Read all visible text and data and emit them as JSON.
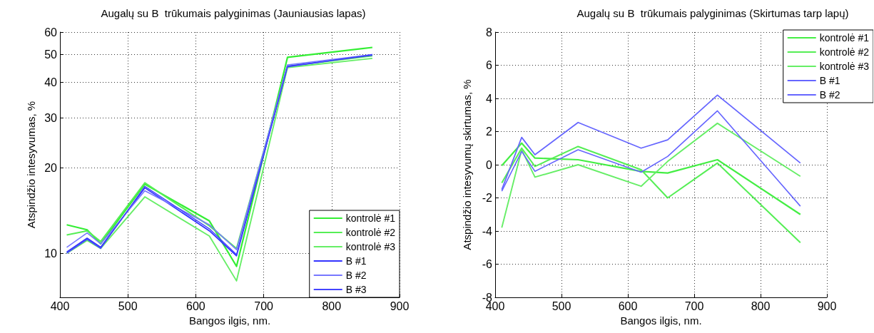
{
  "chart_data": [
    {
      "type": "line",
      "title": "Augalų su B  trūkumais palyginimas (Jauniausias lapas)",
      "xlabel": "Bangos ilgis, nm.",
      "ylabel": "Atspindžio intesyvumas, %",
      "x": [
        410,
        440,
        460,
        525,
        620,
        660,
        735,
        860
      ],
      "xlim": [
        400,
        900
      ],
      "xticks": [
        400,
        500,
        600,
        700,
        800,
        900
      ],
      "ylim": [
        7,
        60
      ],
      "yticks": [
        10,
        20,
        30,
        40,
        50,
        60
      ],
      "log": "y",
      "grid": true,
      "legend": "bottom right",
      "marker": "none",
      "line_style": "solid",
      "series": [
        {
          "name": "kontrolė #1",
          "color": "#33ee33",
          "values": [
            12.6,
            12.1,
            10.8,
            17.5,
            13.0,
            9.0,
            48.9,
            53.0
          ]
        },
        {
          "name": "kontrolė #2",
          "color": "#55ee55",
          "values": [
            11.6,
            12.0,
            11.0,
            17.7,
            12.5,
            10.4,
            45.5,
            49.5
          ]
        },
        {
          "name": "kontrolė #3",
          "color": "#66ee66",
          "values": [
            10.0,
            11.1,
            10.4,
            15.8,
            11.5,
            8.0,
            45.0,
            48.5
          ]
        },
        {
          "name": "B #1",
          "color": "#3333ff",
          "values": [
            10.1,
            11.3,
            10.5,
            17.0,
            12.0,
            9.8,
            45.5,
            49.8
          ]
        },
        {
          "name": "B #2",
          "color": "#7777ff",
          "values": [
            10.5,
            11.8,
            10.8,
            16.6,
            12.6,
            10.3,
            46.0,
            50.0
          ]
        },
        {
          "name": "B #3",
          "color": "#4444ff",
          "values": [
            10.0,
            11.2,
            10.4,
            17.2,
            12.2,
            9.9,
            45.3,
            50.0
          ]
        }
      ]
    },
    {
      "type": "line",
      "title": "Augalų su B  trūkumais palyginimas (Skirtumas tarp lapų)",
      "xlabel": "Bangos ilgis, nm.",
      "ylabel": "Atspindžio intesyvumų skirtumas, %",
      "x": [
        410,
        440,
        460,
        525,
        620,
        660,
        735,
        860
      ],
      "xlim": [
        400,
        900
      ],
      "xticks": [
        400,
        500,
        600,
        700,
        800,
        900
      ],
      "ylim": [
        -8,
        8
      ],
      "yticks": [
        -8,
        -6,
        -4,
        -2,
        0,
        2,
        4,
        6,
        8
      ],
      "grid": true,
      "legend": "top right",
      "marker": "none",
      "line_style": "solid",
      "series": [
        {
          "name": "kontrolė #1",
          "color": "#44ee44",
          "values": [
            -0.05,
            1.3,
            0.4,
            0.3,
            -0.4,
            -0.5,
            0.3,
            -3.0
          ]
        },
        {
          "name": "kontrolė #2",
          "color": "#55ee55",
          "values": [
            -1.1,
            1.0,
            -0.1,
            1.1,
            -0.3,
            -2.0,
            0.1,
            -4.7
          ]
        },
        {
          "name": "kontrolė #3",
          "color": "#66ee66",
          "values": [
            -3.8,
            0.9,
            -0.75,
            0.0,
            -1.3,
            0.2,
            2.5,
            -0.7
          ]
        },
        {
          "name": "B #1",
          "color": "#6666ff",
          "values": [
            -1.5,
            1.65,
            0.6,
            2.55,
            1.0,
            1.5,
            4.2,
            0.1
          ]
        },
        {
          "name": "B #2",
          "color": "#6666ff",
          "values": [
            -1.6,
            0.8,
            -0.4,
            0.9,
            -0.45,
            0.5,
            3.25,
            -2.5
          ]
        }
      ]
    }
  ]
}
